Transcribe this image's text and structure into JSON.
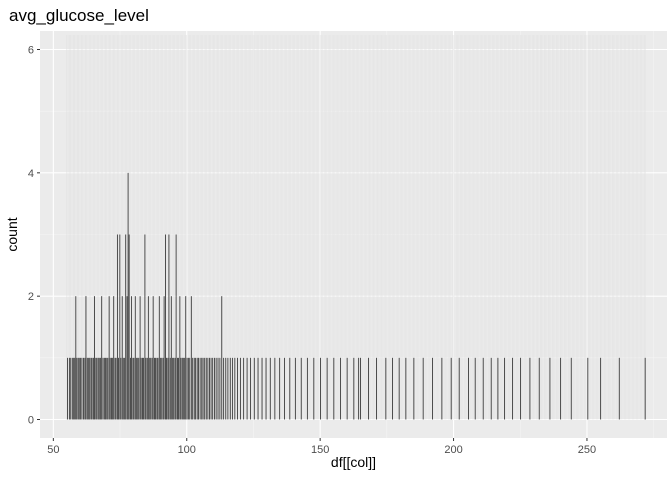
{
  "chart_data": {
    "type": "histogram",
    "title": "avg_glucose_level",
    "xlabel": "df[[col]]",
    "ylabel": "count",
    "xlim": [
      45,
      280
    ],
    "ylim": [
      -0.3,
      6.3
    ],
    "x_ticks": [
      50,
      100,
      150,
      200,
      250
    ],
    "y_ticks": [
      0,
      2,
      4,
      6
    ],
    "x_tick_labels": [
      "50",
      "100",
      "150",
      "200",
      "250"
    ],
    "y_tick_labels": [
      "0",
      "2",
      "4",
      "6"
    ],
    "grid": true,
    "legend": "none",
    "bin_width": 0.1,
    "series": [
      {
        "values": [
          [
            55.2,
            1
          ],
          [
            55.9,
            1
          ],
          [
            56.4,
            1
          ],
          [
            57.0,
            1
          ],
          [
            57.5,
            1
          ],
          [
            57.9,
            1
          ],
          [
            58.3,
            2
          ],
          [
            58.7,
            1
          ],
          [
            59.2,
            1
          ],
          [
            59.6,
            1
          ],
          [
            60.1,
            1
          ],
          [
            60.6,
            1
          ],
          [
            61.2,
            1
          ],
          [
            61.7,
            1
          ],
          [
            62.1,
            2
          ],
          [
            62.6,
            1
          ],
          [
            63.0,
            1
          ],
          [
            63.5,
            1
          ],
          [
            64.0,
            1
          ],
          [
            64.4,
            1
          ],
          [
            64.9,
            1
          ],
          [
            65.3,
            2
          ],
          [
            65.8,
            1
          ],
          [
            66.2,
            1
          ],
          [
            66.7,
            1
          ],
          [
            67.1,
            1
          ],
          [
            67.6,
            1
          ],
          [
            68.0,
            2
          ],
          [
            68.5,
            1
          ],
          [
            69.0,
            1
          ],
          [
            69.4,
            1
          ],
          [
            69.9,
            1
          ],
          [
            70.3,
            1
          ],
          [
            70.8,
            2
          ],
          [
            71.2,
            1
          ],
          [
            71.7,
            1
          ],
          [
            72.1,
            1
          ],
          [
            72.5,
            2
          ],
          [
            73.0,
            1
          ],
          [
            73.4,
            1
          ],
          [
            73.9,
            3
          ],
          [
            74.3,
            1
          ],
          [
            74.8,
            3
          ],
          [
            75.2,
            1
          ],
          [
            75.7,
            2
          ],
          [
            76.1,
            1
          ],
          [
            76.6,
            1
          ],
          [
            77.0,
            3
          ],
          [
            77.5,
            2
          ],
          [
            77.9,
            4
          ],
          [
            78.3,
            3
          ],
          [
            78.8,
            1
          ],
          [
            79.2,
            2
          ],
          [
            79.7,
            1
          ],
          [
            80.1,
            1
          ],
          [
            80.6,
            2
          ],
          [
            81.0,
            1
          ],
          [
            81.5,
            1
          ],
          [
            81.9,
            1
          ],
          [
            82.4,
            2
          ],
          [
            82.8,
            1
          ],
          [
            83.3,
            1
          ],
          [
            83.7,
            1
          ],
          [
            84.2,
            3
          ],
          [
            84.6,
            1
          ],
          [
            85.1,
            1
          ],
          [
            85.5,
            2
          ],
          [
            86.0,
            1
          ],
          [
            86.4,
            1
          ],
          [
            86.9,
            1
          ],
          [
            87.3,
            2
          ],
          [
            87.8,
            1
          ],
          [
            88.2,
            1
          ],
          [
            88.7,
            1
          ],
          [
            89.1,
            1
          ],
          [
            89.6,
            2
          ],
          [
            90.0,
            1
          ],
          [
            90.5,
            1
          ],
          [
            91.0,
            1
          ],
          [
            91.4,
            2
          ],
          [
            91.9,
            3
          ],
          [
            92.3,
            1
          ],
          [
            92.8,
            1
          ],
          [
            93.2,
            3
          ],
          [
            93.7,
            1
          ],
          [
            94.1,
            2
          ],
          [
            94.6,
            1
          ],
          [
            95.0,
            1
          ],
          [
            95.5,
            1
          ],
          [
            95.9,
            3
          ],
          [
            96.4,
            1
          ],
          [
            96.8,
            1
          ],
          [
            97.3,
            2
          ],
          [
            97.7,
            1
          ],
          [
            98.2,
            1
          ],
          [
            98.6,
            1
          ],
          [
            99.1,
            1
          ],
          [
            99.5,
            2
          ],
          [
            100.0,
            1
          ],
          [
            100.5,
            1
          ],
          [
            101.0,
            1
          ],
          [
            101.6,
            2
          ],
          [
            102.1,
            1
          ],
          [
            102.7,
            1
          ],
          [
            103.2,
            1
          ],
          [
            103.8,
            1
          ],
          [
            104.3,
            1
          ],
          [
            104.9,
            1
          ],
          [
            105.5,
            1
          ],
          [
            106.0,
            1
          ],
          [
            106.6,
            1
          ],
          [
            107.2,
            1
          ],
          [
            107.8,
            1
          ],
          [
            108.4,
            1
          ],
          [
            109.0,
            1
          ],
          [
            109.6,
            1
          ],
          [
            110.3,
            1
          ],
          [
            110.9,
            1
          ],
          [
            111.6,
            1
          ],
          [
            112.3,
            1
          ],
          [
            113.0,
            2
          ],
          [
            113.7,
            1
          ],
          [
            114.5,
            1
          ],
          [
            115.3,
            1
          ],
          [
            116.2,
            1
          ],
          [
            117.0,
            1
          ],
          [
            117.9,
            1
          ],
          [
            118.9,
            1
          ],
          [
            120.0,
            1
          ],
          [
            121.2,
            1
          ],
          [
            122.5,
            1
          ],
          [
            123.8,
            1
          ],
          [
            125.2,
            1
          ],
          [
            126.6,
            1
          ],
          [
            128.1,
            1
          ],
          [
            129.6,
            1
          ],
          [
            131.2,
            1
          ],
          [
            132.9,
            1
          ],
          [
            134.7,
            1
          ],
          [
            136.5,
            1
          ],
          [
            138.5,
            1
          ],
          [
            140.6,
            1
          ],
          [
            142.8,
            1
          ],
          [
            145.1,
            1
          ],
          [
            147.5,
            1
          ],
          [
            150.0,
            1
          ],
          [
            152.5,
            1
          ],
          [
            155.0,
            1
          ],
          [
            157.5,
            1
          ],
          [
            160.0,
            1
          ],
          [
            162.5,
            1
          ],
          [
            164.3,
            1
          ],
          [
            165.0,
            1
          ],
          [
            168.0,
            1
          ],
          [
            171.0,
            1
          ],
          [
            174.5,
            1
          ],
          [
            177.0,
            1
          ],
          [
            179.5,
            1
          ],
          [
            182.0,
            1
          ],
          [
            185.0,
            1
          ],
          [
            188.5,
            1
          ],
          [
            192.0,
            1
          ],
          [
            195.5,
            1
          ],
          [
            199.0,
            1
          ],
          [
            202.0,
            1
          ],
          [
            205.5,
            1
          ],
          [
            208.0,
            1
          ],
          [
            211.0,
            1
          ],
          [
            214.0,
            1
          ],
          [
            216.5,
            1
          ],
          [
            219.0,
            1
          ],
          [
            222.0,
            1
          ],
          [
            225.0,
            1
          ],
          [
            228.5,
            1
          ],
          [
            232.0,
            1
          ],
          [
            236.0,
            1
          ],
          [
            240.0,
            1
          ],
          [
            244.0,
            1
          ],
          [
            250.2,
            1
          ],
          [
            255.0,
            1
          ],
          [
            262.0,
            1
          ],
          [
            271.7,
            1
          ]
        ]
      }
    ]
  }
}
